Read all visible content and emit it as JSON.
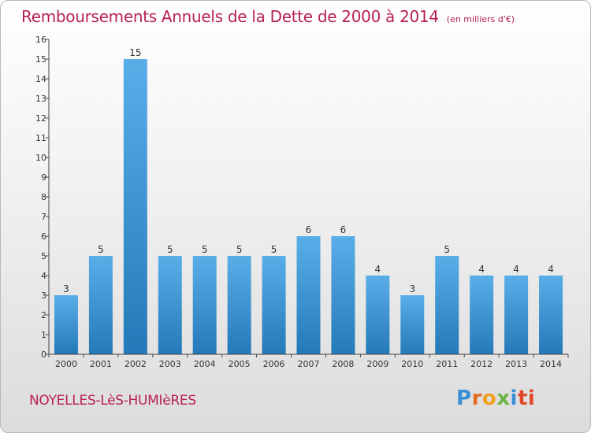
{
  "header": {
    "title": "Remboursements Annuels de la Dette de 2000 à 2014",
    "unit": "(en milliers d'€)"
  },
  "footer": {
    "commune": "NOYELLES-LèS-HUMIèRES",
    "brand": [
      "P",
      "r",
      "o",
      "x",
      "i",
      "ti"
    ]
  },
  "colors": {
    "bar_light": "#5aaee8",
    "bar_dark": "#2479b8",
    "title": "#b8205a"
  },
  "chart_data": {
    "type": "bar",
    "title": "Remboursements Annuels de la Dette de 2000 à 2014",
    "categories": [
      "2000",
      "2001",
      "2002",
      "2003",
      "2004",
      "2005",
      "2006",
      "2007",
      "2008",
      "2009",
      "2010",
      "2011",
      "2012",
      "2013",
      "2014"
    ],
    "values": [
      3,
      5,
      15,
      5,
      5,
      5,
      5,
      6,
      6,
      4,
      3,
      5,
      4,
      4,
      4
    ],
    "ylim": [
      0,
      16
    ],
    "yticks": [
      0,
      1,
      2,
      3,
      4,
      5,
      6,
      7,
      8,
      9,
      10,
      11,
      12,
      13,
      14,
      15,
      16
    ],
    "grid": false,
    "data_labels": true
  }
}
